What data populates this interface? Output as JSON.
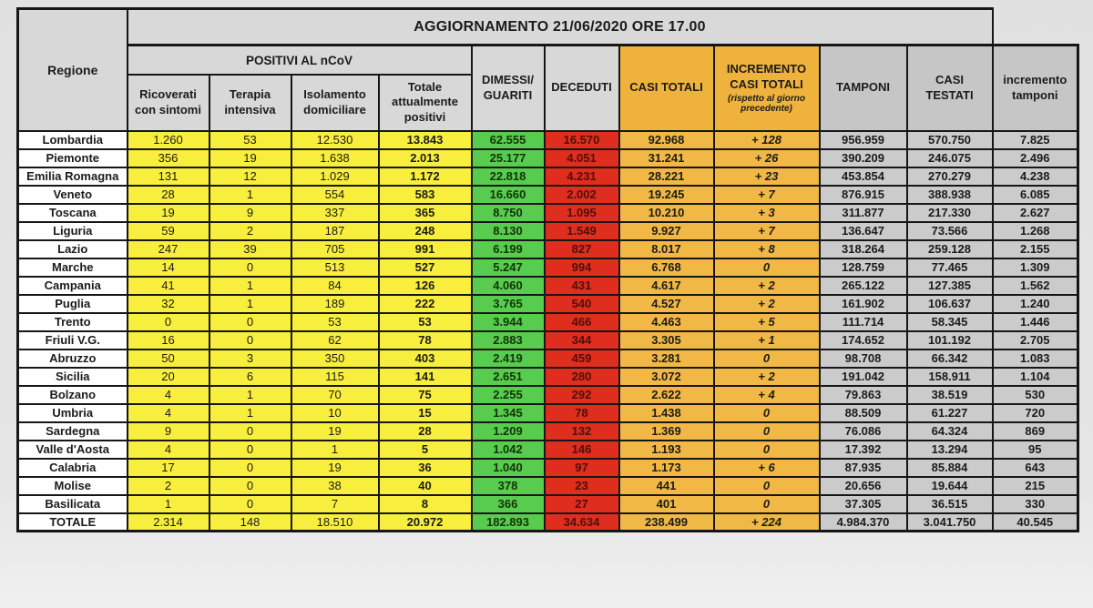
{
  "title": "AGGIORNAMENTO 21/06/2020 ORE 17.00",
  "colors": {
    "positivi_yellow": "#f8ee3d",
    "guariti_green": "#58cc4e",
    "deceduti_red": "#df2d1e",
    "casi_orange": "#f1b845",
    "header_gray": "#d8d8d8",
    "tamponi_gray": "#cbcbcb",
    "border_black": "#161616"
  },
  "header_display": {
    "regione": "Regione",
    "positivi_group": "POSITIVI AL nCoV",
    "ricoverati": "Ricoverati\ncon sintomi",
    "terapia": "Terapia\nintensiva",
    "isolamento": "Isolamento\ndomiciliare",
    "totale_positivi": "Totale\nattualmente\npositivi",
    "dimessi": "DIMESSI/\nGUARITI",
    "deceduti": "DECEDUTI",
    "casi_totali": "CASI TOTALI",
    "incremento_casi": "INCREMENTO\nCASI  TOTALI",
    "incremento_casi_note": "(rispetto al giorno precedente)",
    "tamponi": "TAMPONI",
    "casi_testati": "CASI\nTESTATI",
    "incremento_tamponi": "incremento\ntamponi"
  },
  "chart_data": {
    "type": "table",
    "title": "AGGIORNAMENTO 21/06/2020 ORE 17.00",
    "columns": [
      "Regione",
      "Ricoverati con sintomi",
      "Terapia intensiva",
      "Isolamento domiciliare",
      "Totale attualmente positivi",
      "DIMESSI/GUARITI",
      "DECEDUTI",
      "CASI TOTALI",
      "INCREMENTO CASI TOTALI (rispetto al giorno precedente)",
      "TAMPONI",
      "CASI TESTATI",
      "incremento tamponi"
    ],
    "group_header": "POSITIVI AL nCoV",
    "rows": [
      {
        "name": "Lombardia",
        "values": [
          "1.260",
          "53",
          "12.530",
          "13.843",
          "62.555",
          "16.570",
          "92.968",
          "+ 128",
          "956.959",
          "570.750",
          "7.825"
        ]
      },
      {
        "name": "Piemonte",
        "values": [
          "356",
          "19",
          "1.638",
          "2.013",
          "25.177",
          "4.051",
          "31.241",
          "+ 26",
          "390.209",
          "246.075",
          "2.496"
        ]
      },
      {
        "name": "Emilia Romagna",
        "values": [
          "131",
          "12",
          "1.029",
          "1.172",
          "22.818",
          "4.231",
          "28.221",
          "+ 23",
          "453.854",
          "270.279",
          "4.238"
        ]
      },
      {
        "name": "Veneto",
        "values": [
          "28",
          "1",
          "554",
          "583",
          "16.660",
          "2.002",
          "19.245",
          "+ 7",
          "876.915",
          "388.938",
          "6.085"
        ]
      },
      {
        "name": "Toscana",
        "values": [
          "19",
          "9",
          "337",
          "365",
          "8.750",
          "1.095",
          "10.210",
          "+ 3",
          "311.877",
          "217.330",
          "2.627"
        ]
      },
      {
        "name": "Liguria",
        "values": [
          "59",
          "2",
          "187",
          "248",
          "8.130",
          "1.549",
          "9.927",
          "+ 7",
          "136.647",
          "73.566",
          "1.268"
        ]
      },
      {
        "name": "Lazio",
        "values": [
          "247",
          "39",
          "705",
          "991",
          "6.199",
          "827",
          "8.017",
          "+ 8",
          "318.264",
          "259.128",
          "2.155"
        ]
      },
      {
        "name": "Marche",
        "values": [
          "14",
          "0",
          "513",
          "527",
          "5.247",
          "994",
          "6.768",
          "0",
          "128.759",
          "77.465",
          "1.309"
        ]
      },
      {
        "name": "Campania",
        "values": [
          "41",
          "1",
          "84",
          "126",
          "4.060",
          "431",
          "4.617",
          "+ 2",
          "265.122",
          "127.385",
          "1.562"
        ]
      },
      {
        "name": "Puglia",
        "values": [
          "32",
          "1",
          "189",
          "222",
          "3.765",
          "540",
          "4.527",
          "+ 2",
          "161.902",
          "106.637",
          "1.240"
        ]
      },
      {
        "name": "Trento",
        "values": [
          "0",
          "0",
          "53",
          "53",
          "3.944",
          "466",
          "4.463",
          "+ 5",
          "111.714",
          "58.345",
          "1.446"
        ]
      },
      {
        "name": "Friuli V.G.",
        "values": [
          "16",
          "0",
          "62",
          "78",
          "2.883",
          "344",
          "3.305",
          "+ 1",
          "174.652",
          "101.192",
          "2.705"
        ]
      },
      {
        "name": "Abruzzo",
        "values": [
          "50",
          "3",
          "350",
          "403",
          "2.419",
          "459",
          "3.281",
          "0",
          "98.708",
          "66.342",
          "1.083"
        ]
      },
      {
        "name": "Sicilia",
        "values": [
          "20",
          "6",
          "115",
          "141",
          "2.651",
          "280",
          "3.072",
          "+ 2",
          "191.042",
          "158.911",
          "1.104"
        ]
      },
      {
        "name": "Bolzano",
        "values": [
          "4",
          "1",
          "70",
          "75",
          "2.255",
          "292",
          "2.622",
          "+ 4",
          "79.863",
          "38.519",
          "530"
        ]
      },
      {
        "name": "Umbria",
        "values": [
          "4",
          "1",
          "10",
          "15",
          "1.345",
          "78",
          "1.438",
          "0",
          "88.509",
          "61.227",
          "720"
        ]
      },
      {
        "name": "Sardegna",
        "values": [
          "9",
          "0",
          "19",
          "28",
          "1.209",
          "132",
          "1.369",
          "0",
          "76.086",
          "64.324",
          "869"
        ]
      },
      {
        "name": "Valle d'Aosta",
        "values": [
          "4",
          "0",
          "1",
          "5",
          "1.042",
          "146",
          "1.193",
          "0",
          "17.392",
          "13.294",
          "95"
        ]
      },
      {
        "name": "Calabria",
        "values": [
          "17",
          "0",
          "19",
          "36",
          "1.040",
          "97",
          "1.173",
          "+ 6",
          "87.935",
          "85.884",
          "643"
        ]
      },
      {
        "name": "Molise",
        "values": [
          "2",
          "0",
          "38",
          "40",
          "378",
          "23",
          "441",
          "0",
          "20.656",
          "19.644",
          "215"
        ]
      },
      {
        "name": "Basilicata",
        "values": [
          "1",
          "0",
          "7",
          "8",
          "366",
          "27",
          "401",
          "0",
          "37.305",
          "36.515",
          "330"
        ]
      }
    ],
    "total_row": {
      "name": "TOTALE",
      "values": [
        "2.314",
        "148",
        "18.510",
        "20.972",
        "182.893",
        "34.634",
        "238.499",
        "+ 224",
        "4.984.370",
        "3.041.750",
        "40.545"
      ]
    }
  }
}
